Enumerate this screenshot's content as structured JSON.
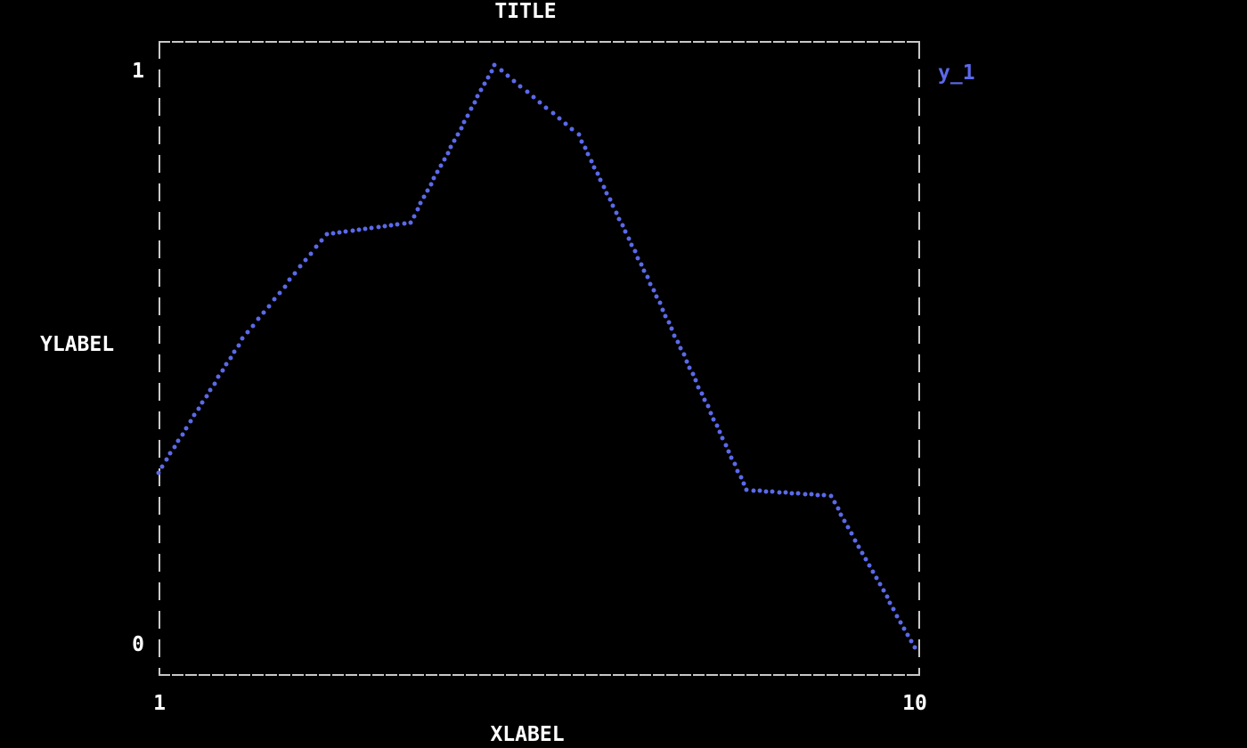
{
  "title": "TITLE",
  "axes": {
    "y_max_label": "1",
    "y_min_label": "0",
    "x_min_label": "1",
    "x_max_label": "10",
    "xlabel": "XLABEL",
    "ylabel": "YLABEL"
  },
  "legend": {
    "label": "y_1"
  },
  "colors": {
    "background": "#000000",
    "frame": "#c8c8c8",
    "text": "#ffffff",
    "series": "#5b69ea"
  },
  "chart_data": {
    "type": "scatter",
    "title": "TITLE",
    "xlabel": "XLABEL",
    "ylabel": "YLABEL",
    "xlim": [
      1,
      10
    ],
    "ylim": [
      0,
      1
    ],
    "grid": false,
    "legend_position": "outside-top-right",
    "style": "terminal dotted-line plot, dashed gray border, dots linearly interpolated between points",
    "series": [
      {
        "name": "y_1",
        "marker": "dot",
        "color": "#5b69ea",
        "x": [
          1,
          2,
          3,
          4,
          5,
          6,
          7,
          8,
          9,
          10
        ],
        "y": [
          0.3,
          0.53,
          0.71,
          0.73,
          1.0,
          0.88,
          0.58,
          0.27,
          0.26,
          0.0
        ]
      }
    ]
  }
}
